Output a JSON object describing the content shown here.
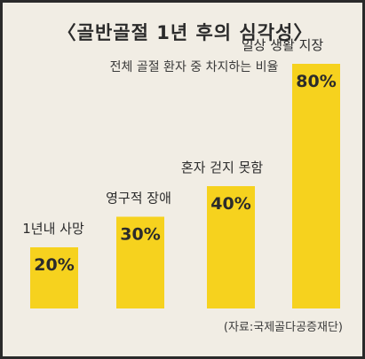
{
  "chart_data": {
    "type": "bar",
    "title": "〈골반골절 1년 후의 심각성〉",
    "subtitle": "전체 골절 환자 중 차지하는 비율",
    "categories": [
      "1년내 사망",
      "영구적 장애",
      "혼자 걷지 못함",
      "일상 생활 지장"
    ],
    "values": [
      20,
      30,
      40,
      80
    ],
    "value_labels": [
      "20%",
      "30%",
      "40%",
      "80%"
    ],
    "unit": "%",
    "ylim": [
      0,
      100
    ],
    "grid": false,
    "legend": "none",
    "bar_color": "#f6d21e",
    "source": "(자료:국제골다공증재단)"
  }
}
